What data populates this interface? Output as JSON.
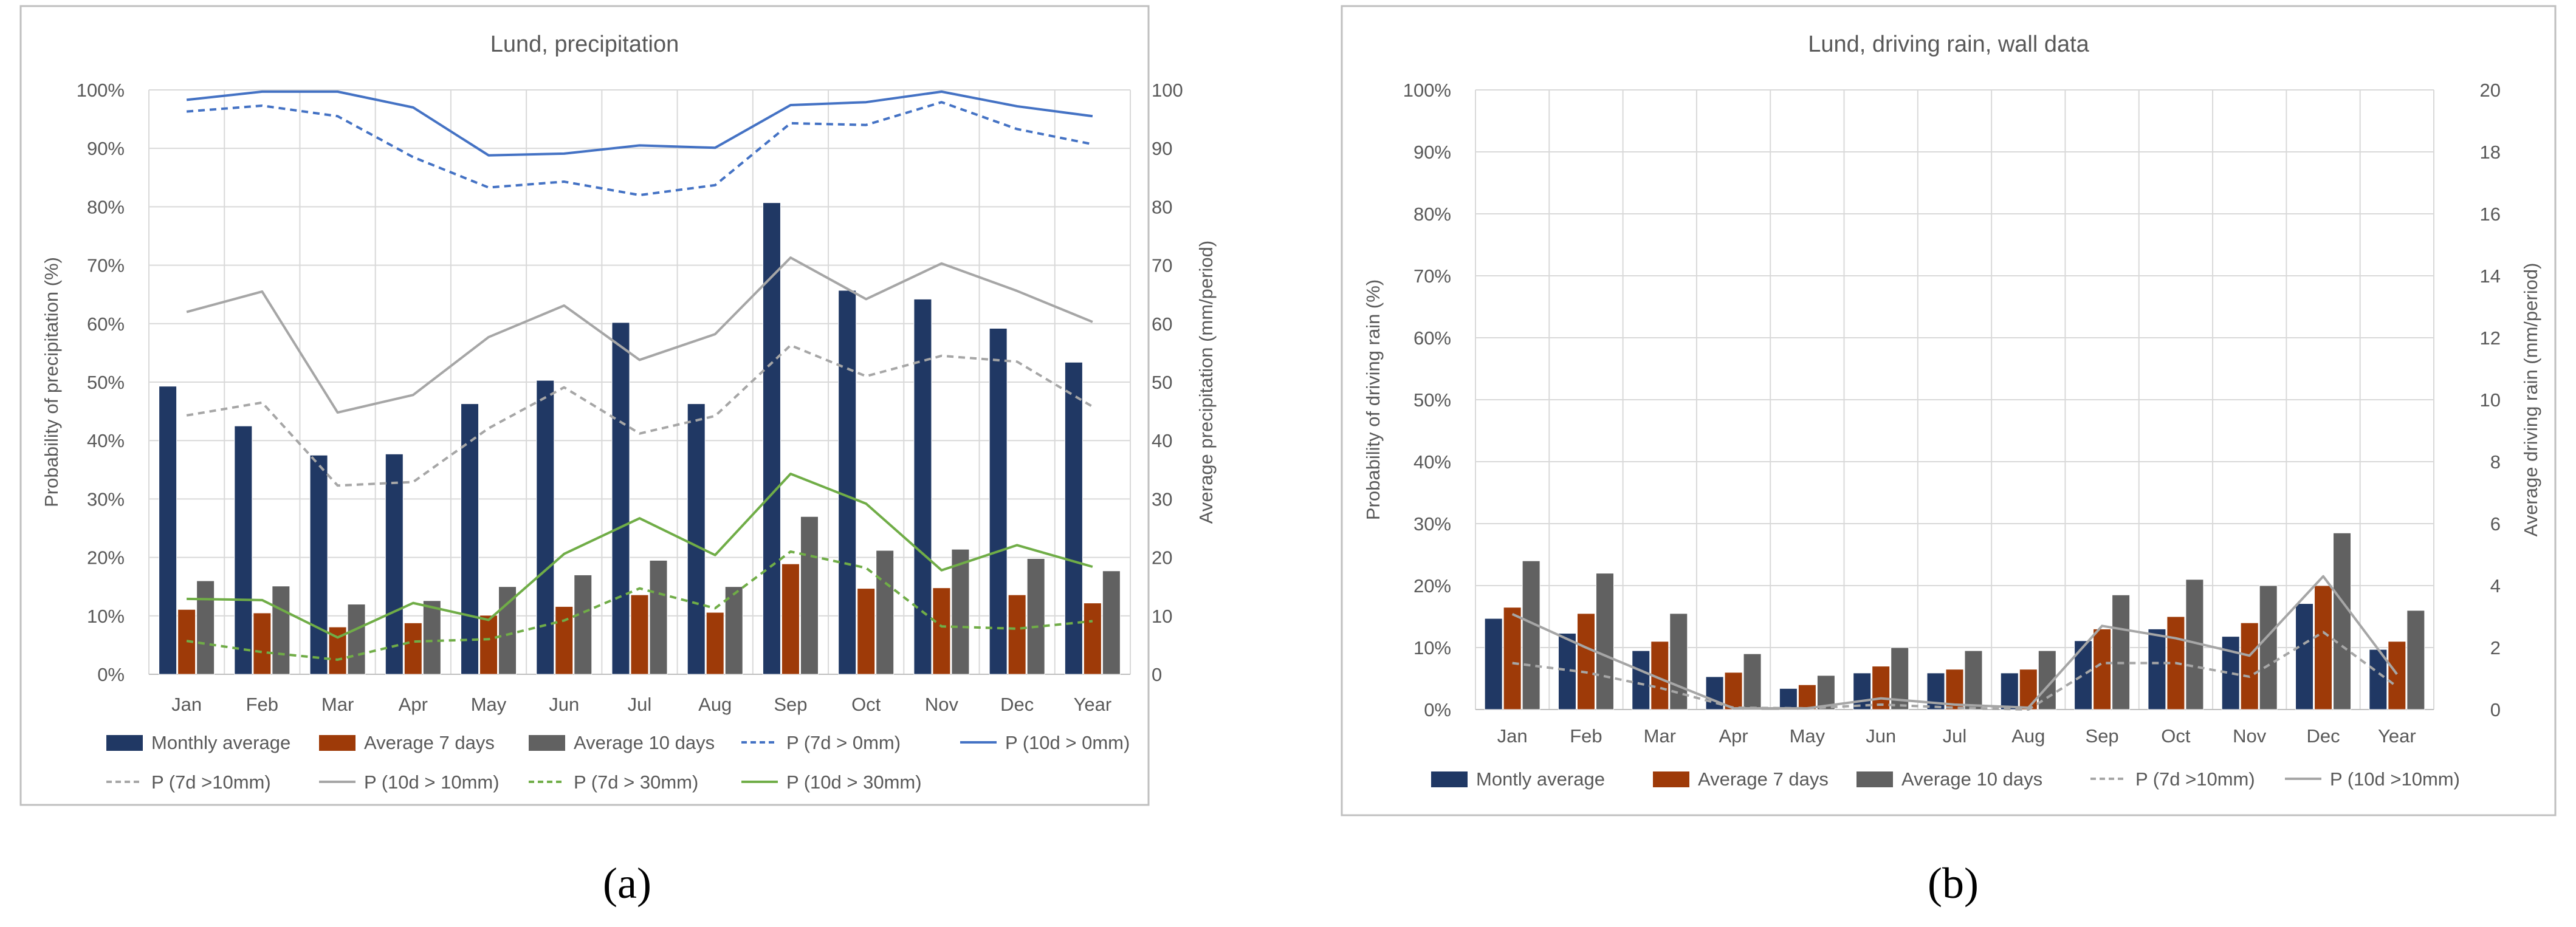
{
  "captions": {
    "a": "(a)",
    "b": "(b)"
  },
  "colors": {
    "monthly": "#203864",
    "avg7": "#9E3A08",
    "avg10": "#616161",
    "blue": "#4472C4",
    "gray": "#A6A6A6",
    "green": "#70AD47",
    "grid": "#D9D9D9",
    "frame": "#BFBFBF",
    "text": "#595959"
  },
  "chart_data": [
    {
      "id": "a",
      "type": "bar",
      "title": "Lund, precipitation",
      "ylabel": "Probability of precipitation (%)",
      "y2label": "Average  precipitation (mm/period)",
      "categories": [
        "Jan",
        "Feb",
        "Mar",
        "Apr",
        "May",
        "Jun",
        "Jul",
        "Aug",
        "Sep",
        "Oct",
        "Nov",
        "Dec",
        "Year"
      ],
      "ylim": [
        0,
        100
      ],
      "yticks": [
        "0%",
        "10%",
        "20%",
        "30%",
        "40%",
        "50%",
        "60%",
        "70%",
        "80%",
        "90%",
        "100%"
      ],
      "y2lim": [
        0,
        100
      ],
      "y2ticks": [
        "0",
        "10",
        "20",
        "30",
        "40",
        "50",
        "60",
        "70",
        "80",
        "90",
        "100"
      ],
      "grid": true,
      "legend_position": "bottom",
      "bar_series": [
        {
          "name": "Monthly average",
          "color": "#203864",
          "values": [
            49.3,
            42.5,
            37.5,
            37.7,
            46.3,
            50.3,
            60.2,
            46.3,
            80.7,
            65.7,
            64.2,
            59.2,
            53.4
          ]
        },
        {
          "name": "Average 7 days",
          "color": "#9E3A08",
          "values": [
            11.1,
            10.5,
            8.1,
            8.8,
            10.1,
            11.6,
            13.6,
            10.6,
            18.9,
            14.7,
            14.8,
            13.6,
            12.2
          ]
        },
        {
          "name": "Average 10 days",
          "color": "#616161",
          "values": [
            16.0,
            15.1,
            12.0,
            12.6,
            15.0,
            17.0,
            19.5,
            15.0,
            27.0,
            21.2,
            21.4,
            19.8,
            17.7
          ]
        }
      ],
      "line_series": [
        {
          "name": "P (7d > 0mm)",
          "color": "#4472C4",
          "dash": true,
          "values": [
            96.3,
            97.3,
            95.5,
            88.5,
            83.3,
            84.3,
            82.0,
            83.7,
            94.3,
            94.0,
            97.9,
            93.3,
            90.7
          ]
        },
        {
          "name": "P (10d > 0mm)",
          "color": "#4472C4",
          "dash": false,
          "values": [
            98.3,
            99.7,
            99.7,
            97.0,
            88.8,
            89.1,
            90.5,
            90.1,
            97.4,
            97.9,
            99.7,
            97.2,
            95.5
          ]
        },
        {
          "name": "P (7d >10mm)",
          "color": "#A6A6A6",
          "dash": true,
          "values": [
            44.3,
            46.5,
            32.3,
            32.9,
            42.1,
            49.1,
            41.2,
            44.2,
            56.3,
            51.0,
            54.5,
            53.5,
            45.8
          ]
        },
        {
          "name": "P (10d > 10mm)",
          "color": "#A6A6A6",
          "dash": false,
          "values": [
            62.0,
            65.5,
            44.8,
            47.8,
            57.7,
            63.1,
            53.8,
            58.2,
            71.3,
            64.2,
            70.3,
            65.6,
            60.3
          ]
        },
        {
          "name": "P (7d > 30mm)",
          "color": "#70AD47",
          "dash": true,
          "values": [
            5.7,
            3.8,
            2.5,
            5.6,
            6.0,
            9.2,
            14.7,
            11.3,
            21.0,
            18.2,
            8.2,
            7.8,
            9.1
          ]
        },
        {
          "name": "P (10d > 30mm)",
          "color": "#70AD47",
          "dash": false,
          "values": [
            12.9,
            12.7,
            6.3,
            12.2,
            9.3,
            20.6,
            26.7,
            20.4,
            34.3,
            29.2,
            17.8,
            22.1,
            18.4
          ]
        }
      ]
    },
    {
      "id": "b",
      "type": "bar",
      "title": "Lund, driving rain, wall data",
      "ylabel": "Probability of driving rain (%)",
      "y2label": "Average  driving rain (mm/period)",
      "categories": [
        "Jan",
        "Feb",
        "Mar",
        "Apr",
        "May",
        "Jun",
        "Jul",
        "Aug",
        "Sep",
        "Oct",
        "Nov",
        "Dec",
        "Year"
      ],
      "ylim": [
        0,
        100
      ],
      "yticks": [
        "0%",
        "10%",
        "20%",
        "30%",
        "40%",
        "50%",
        "60%",
        "70%",
        "80%",
        "90%",
        "100%"
      ],
      "y2lim": [
        0,
        20
      ],
      "y2ticks": [
        "0",
        "2",
        "4",
        "6",
        "8",
        "10",
        "12",
        "14",
        "16",
        "18",
        "20"
      ],
      "grid": true,
      "legend_position": "bottom",
      "bar_series": [
        {
          "name": "Montly average",
          "color": "#203864",
          "values": [
            14.7,
            12.3,
            9.5,
            5.3,
            3.4,
            5.9,
            5.9,
            5.9,
            11.1,
            13.0,
            11.8,
            17.1,
            9.7
          ]
        },
        {
          "name": "Average 7 days",
          "color": "#9E3A08",
          "values": [
            3.3,
            3.1,
            2.2,
            1.2,
            0.8,
            1.4,
            1.3,
            1.3,
            2.6,
            3.0,
            2.8,
            4.0,
            2.2
          ]
        },
        {
          "name": "Average 10 days",
          "color": "#616161",
          "values": [
            4.8,
            4.4,
            3.1,
            1.8,
            1.1,
            2.0,
            1.9,
            1.9,
            3.7,
            4.2,
            4.0,
            5.7,
            3.2
          ]
        }
      ],
      "line_series": [
        {
          "name": "P (7d >10mm)",
          "color": "#A6A6A6",
          "dash": true,
          "values": [
            7.5,
            6.0,
            3.5,
            0.3,
            0.2,
            0.8,
            0.3,
            0.0,
            7.5,
            7.5,
            5.3,
            12.5,
            3.7
          ]
        },
        {
          "name": "P (10d >10mm)",
          "color": "#A6A6A6",
          "dash": false,
          "values": [
            15.4,
            10.0,
            5.0,
            0.2,
            0.2,
            1.8,
            0.8,
            0.3,
            13.5,
            11.5,
            8.7,
            21.5,
            5.7
          ]
        }
      ]
    }
  ]
}
